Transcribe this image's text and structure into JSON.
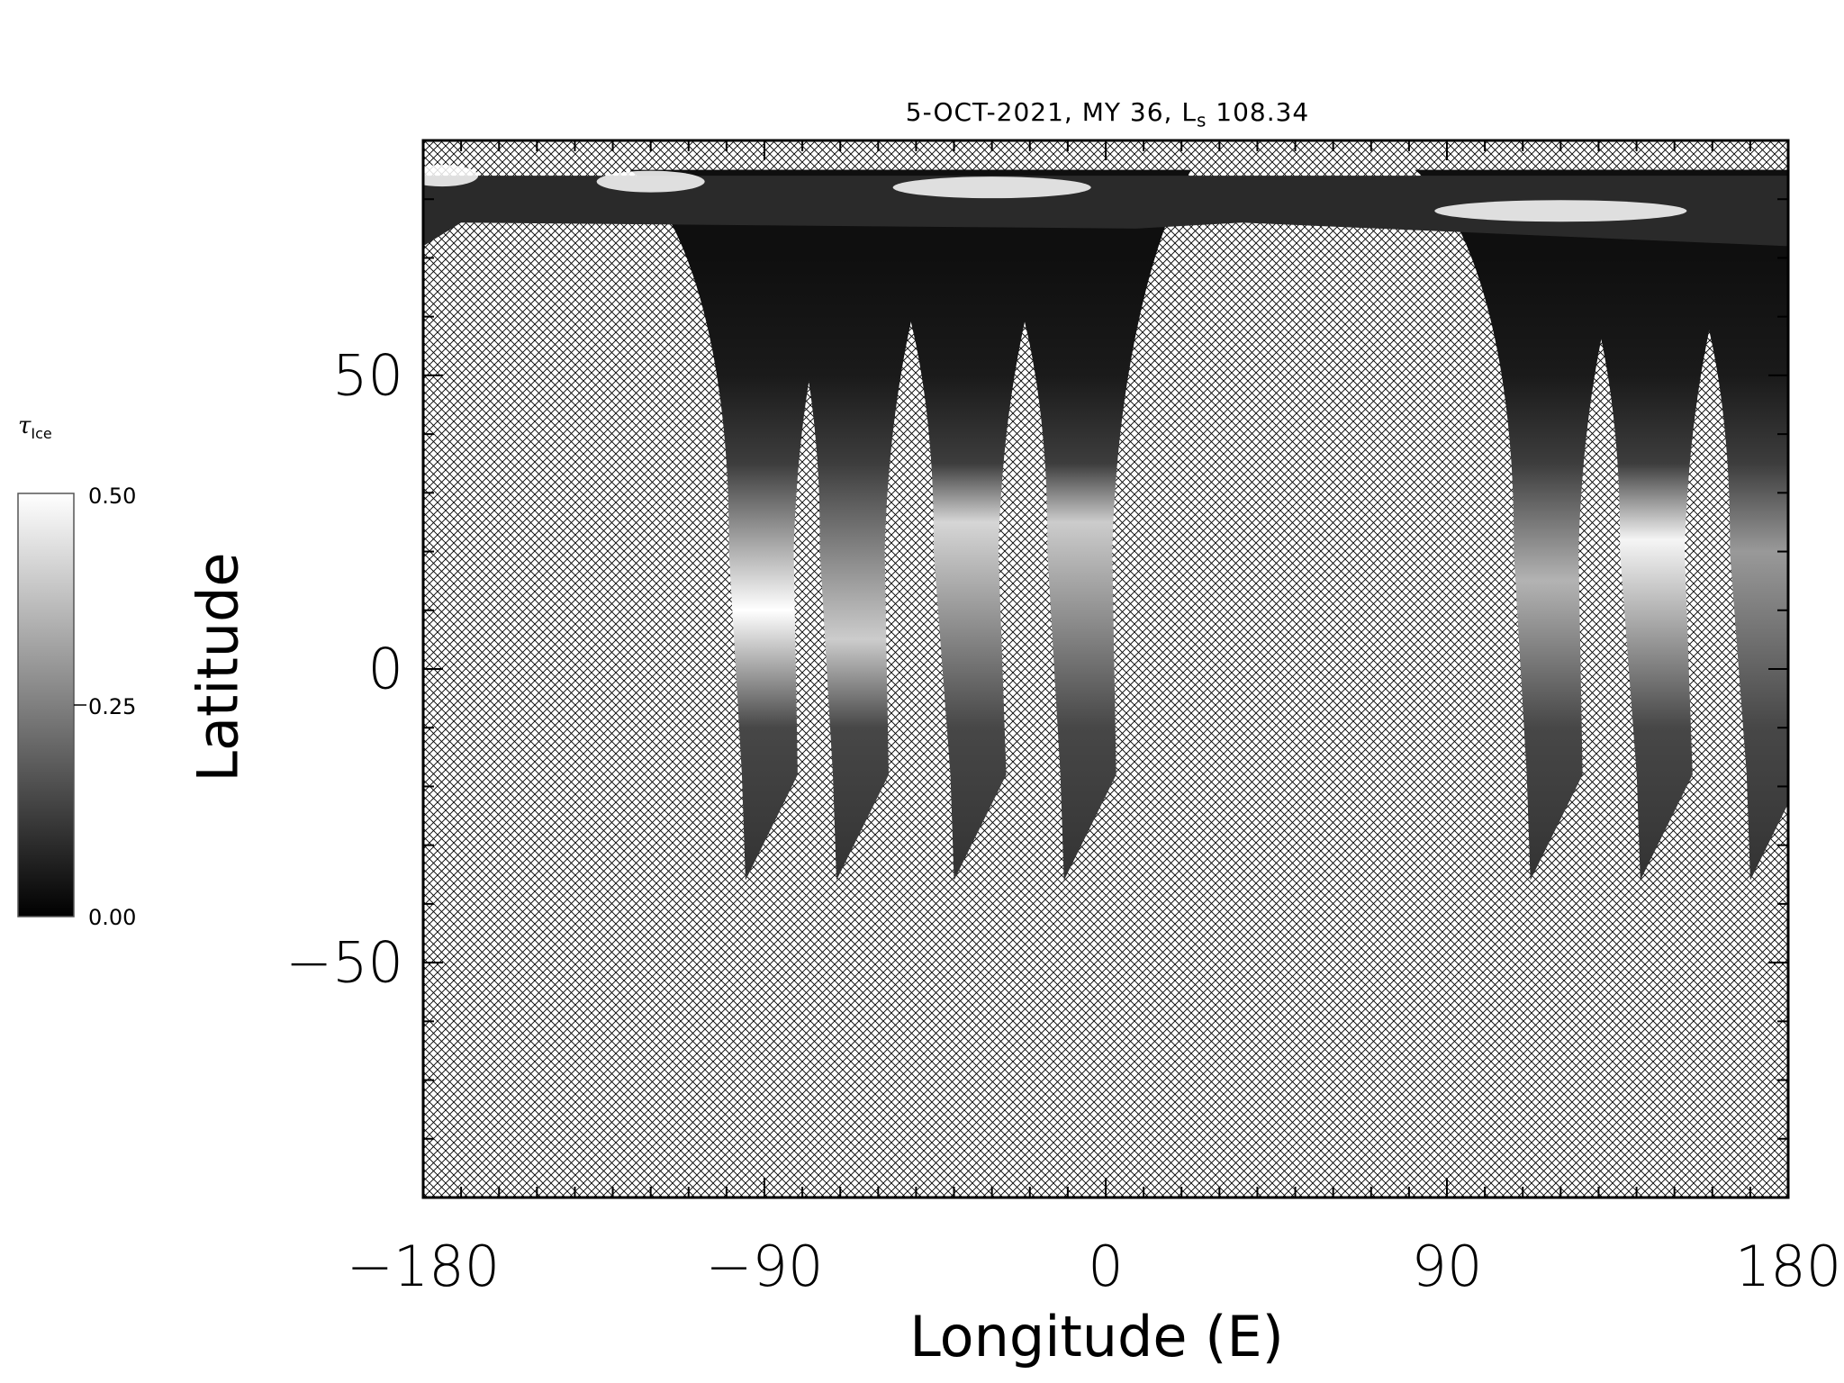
{
  "chart_data": {
    "type": "heatmap",
    "title_main": "5-OCT-2021, MY 36,  L",
    "title_sub": "s",
    "title_value": " 108.34",
    "xlabel": "Longitude (E)",
    "ylabel": "Latitude",
    "xlim": [
      -180,
      180
    ],
    "ylim": [
      -90,
      90
    ],
    "xticks": [
      -180,
      -90,
      0,
      90,
      180
    ],
    "xtick_labels": [
      "−180",
      "−90",
      "0",
      "90",
      "180"
    ],
    "yticks": [
      -50,
      0,
      50
    ],
    "ytick_labels": [
      "−50",
      "0",
      "50"
    ],
    "no_data_fill": "cross-hatch",
    "colorbar": {
      "label_symbol": "τ",
      "label_sub": "Ice",
      "range": [
        0.0,
        0.5
      ],
      "ticks": [
        0.0,
        0.25,
        0.5
      ],
      "tick_labels": [
        "0.00",
        "0.25",
        "0.50"
      ],
      "colormap": "grayscale"
    },
    "swaths": [
      {
        "lon_south": -95,
        "lat_south": -36,
        "lon_equator": -97,
        "ice_peak": 0.5,
        "ice_peak_lat": 10
      },
      {
        "lon_south": -71,
        "lat_south": -36,
        "lon_equator": -73,
        "ice_peak": 0.4,
        "ice_peak_lat": 5
      },
      {
        "lon_south": -40,
        "lat_south": -36,
        "lon_equator": -43,
        "ice_peak": 0.42,
        "ice_peak_lat": 25
      },
      {
        "lon_south": -11,
        "lat_south": -36,
        "lon_equator": -13,
        "ice_peak": 0.4,
        "ice_peak_lat": 25
      },
      {
        "lon_south": 112,
        "lat_south": -36,
        "lon_equator": 110,
        "ice_peak": 0.35,
        "ice_peak_lat": 15
      },
      {
        "lon_south": 141,
        "lat_south": -36,
        "lon_equator": 138,
        "ice_peak": 0.48,
        "ice_peak_lat": 22
      },
      {
        "lon_south": 170,
        "lat_south": -36,
        "lon_equator": 167,
        "ice_peak": 0.3,
        "ice_peak_lat": 20
      }
    ],
    "north_polar_cap": {
      "lat_min": 72,
      "ice": 0.5
    }
  },
  "colors": {
    "background": "#ffffff",
    "axis": "#000000",
    "hatch": "#000000"
  }
}
